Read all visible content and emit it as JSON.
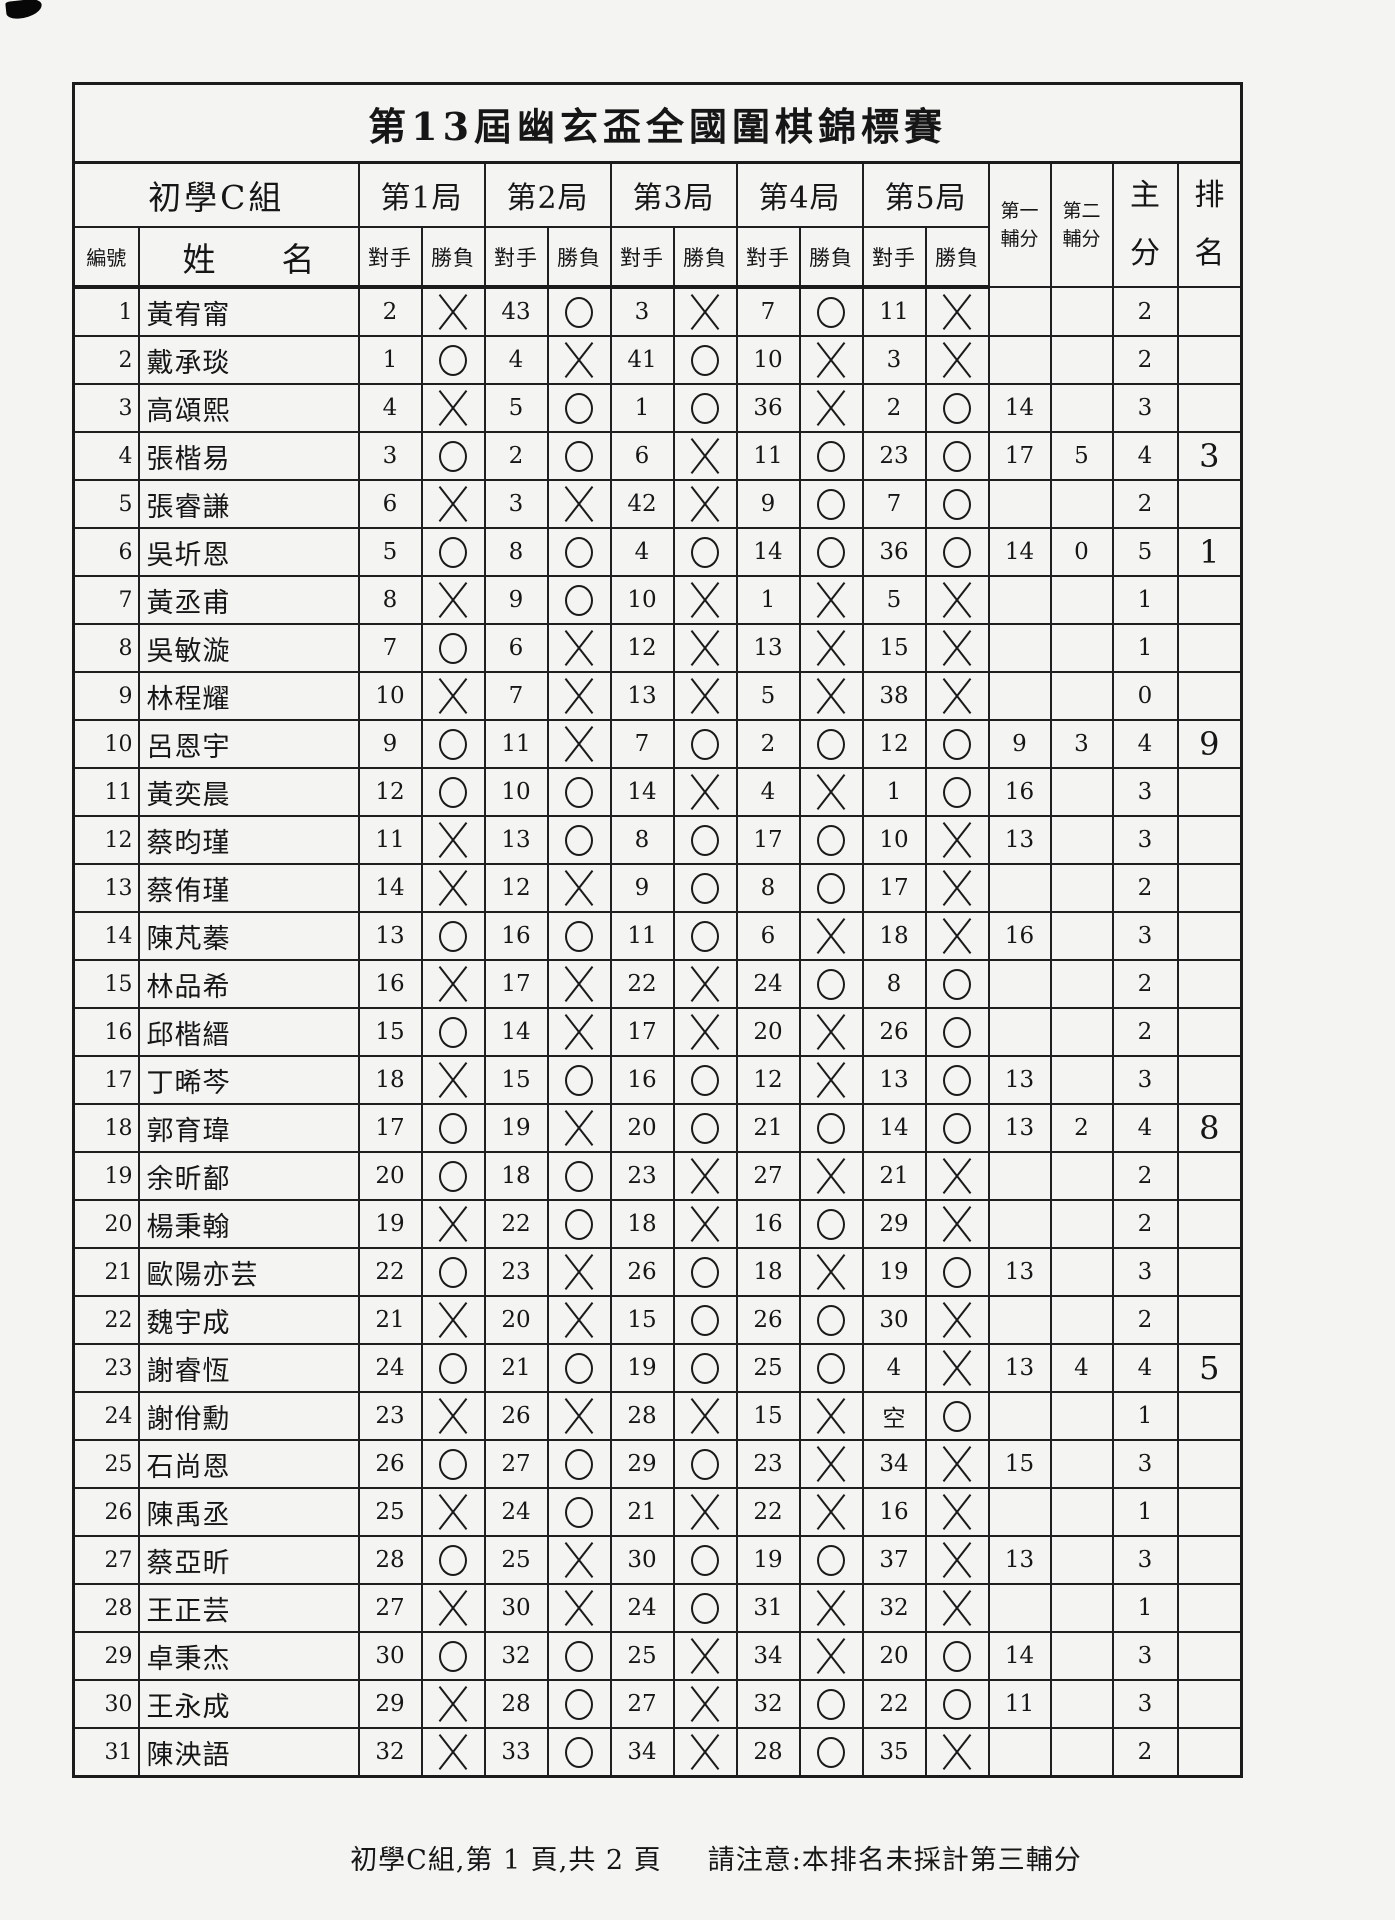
{
  "page": {
    "title": "第13屆幽玄盃全國圍棋錦標賽"
  },
  "table": {
    "headers": {
      "group_label": "初學C組",
      "round_labels": [
        "第1局",
        "第2局",
        "第3局",
        "第4局",
        "第5局"
      ],
      "id_label": "編號",
      "name_label": "姓　　名",
      "opponent_label": "對手",
      "result_label": "勝負",
      "tiebreak1_label": "第一\n輔分",
      "tiebreak2_label": "第二\n輔分",
      "score_label": "主\n分",
      "rank_label": "排\n名"
    },
    "rows": [
      {
        "no": "1",
        "name": "黃宥甯",
        "games": [
          [
            "2",
            "X"
          ],
          [
            "43",
            "O"
          ],
          [
            "3",
            "X"
          ],
          [
            "7",
            "O"
          ],
          [
            "11",
            "X"
          ]
        ],
        "tb1": "",
        "tb2": "",
        "score": "2",
        "rank": ""
      },
      {
        "no": "2",
        "name": "戴承琰",
        "games": [
          [
            "1",
            "O"
          ],
          [
            "4",
            "X"
          ],
          [
            "41",
            "O"
          ],
          [
            "10",
            "X"
          ],
          [
            "3",
            "X"
          ]
        ],
        "tb1": "",
        "tb2": "",
        "score": "2",
        "rank": ""
      },
      {
        "no": "3",
        "name": "高頌熙",
        "games": [
          [
            "4",
            "X"
          ],
          [
            "5",
            "O"
          ],
          [
            "1",
            "O"
          ],
          [
            "36",
            "X"
          ],
          [
            "2",
            "O"
          ]
        ],
        "tb1": "14",
        "tb2": "",
        "score": "3",
        "rank": ""
      },
      {
        "no": "4",
        "name": "張楷易",
        "games": [
          [
            "3",
            "O"
          ],
          [
            "2",
            "O"
          ],
          [
            "6",
            "X"
          ],
          [
            "11",
            "O"
          ],
          [
            "23",
            "O"
          ]
        ],
        "tb1": "17",
        "tb2": "5",
        "score": "4",
        "rank": "3"
      },
      {
        "no": "5",
        "name": "張睿謙",
        "games": [
          [
            "6",
            "X"
          ],
          [
            "3",
            "X"
          ],
          [
            "42",
            "X"
          ],
          [
            "9",
            "O"
          ],
          [
            "7",
            "O"
          ]
        ],
        "tb1": "",
        "tb2": "",
        "score": "2",
        "rank": ""
      },
      {
        "no": "6",
        "name": "吳圻恩",
        "games": [
          [
            "5",
            "O"
          ],
          [
            "8",
            "O"
          ],
          [
            "4",
            "O"
          ],
          [
            "14",
            "O"
          ],
          [
            "36",
            "O"
          ]
        ],
        "tb1": "14",
        "tb2": "0",
        "score": "5",
        "rank": "1"
      },
      {
        "no": "7",
        "name": "黃丞甫",
        "games": [
          [
            "8",
            "X"
          ],
          [
            "9",
            "O"
          ],
          [
            "10",
            "X"
          ],
          [
            "1",
            "X"
          ],
          [
            "5",
            "X"
          ]
        ],
        "tb1": "",
        "tb2": "",
        "score": "1",
        "rank": ""
      },
      {
        "no": "8",
        "name": "吳敏漩",
        "games": [
          [
            "7",
            "O"
          ],
          [
            "6",
            "X"
          ],
          [
            "12",
            "X"
          ],
          [
            "13",
            "X"
          ],
          [
            "15",
            "X"
          ]
        ],
        "tb1": "",
        "tb2": "",
        "score": "1",
        "rank": ""
      },
      {
        "no": "9",
        "name": "林程耀",
        "games": [
          [
            "10",
            "X"
          ],
          [
            "7",
            "X"
          ],
          [
            "13",
            "X"
          ],
          [
            "5",
            "X"
          ],
          [
            "38",
            "X"
          ]
        ],
        "tb1": "",
        "tb2": "",
        "score": "0",
        "rank": ""
      },
      {
        "no": "10",
        "name": "呂恩宇",
        "games": [
          [
            "9",
            "O"
          ],
          [
            "11",
            "X"
          ],
          [
            "7",
            "O"
          ],
          [
            "2",
            "O"
          ],
          [
            "12",
            "O"
          ]
        ],
        "tb1": "9",
        "tb2": "3",
        "score": "4",
        "rank": "9"
      },
      {
        "no": "11",
        "name": "黃奕晨",
        "games": [
          [
            "12",
            "O"
          ],
          [
            "10",
            "O"
          ],
          [
            "14",
            "X"
          ],
          [
            "4",
            "X"
          ],
          [
            "1",
            "O"
          ]
        ],
        "tb1": "16",
        "tb2": "",
        "score": "3",
        "rank": ""
      },
      {
        "no": "12",
        "name": "蔡昀瑾",
        "games": [
          [
            "11",
            "X"
          ],
          [
            "13",
            "O"
          ],
          [
            "8",
            "O"
          ],
          [
            "17",
            "O"
          ],
          [
            "10",
            "X"
          ]
        ],
        "tb1": "13",
        "tb2": "",
        "score": "3",
        "rank": ""
      },
      {
        "no": "13",
        "name": "蔡侑瑾",
        "games": [
          [
            "14",
            "X"
          ],
          [
            "12",
            "X"
          ],
          [
            "9",
            "O"
          ],
          [
            "8",
            "O"
          ],
          [
            "17",
            "X"
          ]
        ],
        "tb1": "",
        "tb2": "",
        "score": "2",
        "rank": ""
      },
      {
        "no": "14",
        "name": "陳芃蓁",
        "games": [
          [
            "13",
            "O"
          ],
          [
            "16",
            "O"
          ],
          [
            "11",
            "O"
          ],
          [
            "6",
            "X"
          ],
          [
            "18",
            "X"
          ]
        ],
        "tb1": "16",
        "tb2": "",
        "score": "3",
        "rank": ""
      },
      {
        "no": "15",
        "name": "林品希",
        "games": [
          [
            "16",
            "X"
          ],
          [
            "17",
            "X"
          ],
          [
            "22",
            "X"
          ],
          [
            "24",
            "O"
          ],
          [
            "8",
            "O"
          ]
        ],
        "tb1": "",
        "tb2": "",
        "score": "2",
        "rank": ""
      },
      {
        "no": "16",
        "name": "邱楷縉",
        "games": [
          [
            "15",
            "O"
          ],
          [
            "14",
            "X"
          ],
          [
            "17",
            "X"
          ],
          [
            "20",
            "X"
          ],
          [
            "26",
            "O"
          ]
        ],
        "tb1": "",
        "tb2": "",
        "score": "2",
        "rank": ""
      },
      {
        "no": "17",
        "name": "丁晞芩",
        "games": [
          [
            "18",
            "X"
          ],
          [
            "15",
            "O"
          ],
          [
            "16",
            "O"
          ],
          [
            "12",
            "X"
          ],
          [
            "13",
            "O"
          ]
        ],
        "tb1": "13",
        "tb2": "",
        "score": "3",
        "rank": ""
      },
      {
        "no": "18",
        "name": "郭育瑋",
        "games": [
          [
            "17",
            "O"
          ],
          [
            "19",
            "X"
          ],
          [
            "20",
            "O"
          ],
          [
            "21",
            "O"
          ],
          [
            "14",
            "O"
          ]
        ],
        "tb1": "13",
        "tb2": "2",
        "score": "4",
        "rank": "8"
      },
      {
        "no": "19",
        "name": "余昕鄐",
        "games": [
          [
            "20",
            "O"
          ],
          [
            "18",
            "O"
          ],
          [
            "23",
            "X"
          ],
          [
            "27",
            "X"
          ],
          [
            "21",
            "X"
          ]
        ],
        "tb1": "",
        "tb2": "",
        "score": "2",
        "rank": ""
      },
      {
        "no": "20",
        "name": "楊秉翰",
        "games": [
          [
            "19",
            "X"
          ],
          [
            "22",
            "O"
          ],
          [
            "18",
            "X"
          ],
          [
            "16",
            "O"
          ],
          [
            "29",
            "X"
          ]
        ],
        "tb1": "",
        "tb2": "",
        "score": "2",
        "rank": ""
      },
      {
        "no": "21",
        "name": "歐陽亦芸",
        "games": [
          [
            "22",
            "O"
          ],
          [
            "23",
            "X"
          ],
          [
            "26",
            "O"
          ],
          [
            "18",
            "X"
          ],
          [
            "19",
            "O"
          ]
        ],
        "tb1": "13",
        "tb2": "",
        "score": "3",
        "rank": ""
      },
      {
        "no": "22",
        "name": "魏宇成",
        "games": [
          [
            "21",
            "X"
          ],
          [
            "20",
            "X"
          ],
          [
            "15",
            "O"
          ],
          [
            "26",
            "O"
          ],
          [
            "30",
            "X"
          ]
        ],
        "tb1": "",
        "tb2": "",
        "score": "2",
        "rank": ""
      },
      {
        "no": "23",
        "name": "謝睿恆",
        "games": [
          [
            "24",
            "O"
          ],
          [
            "21",
            "O"
          ],
          [
            "19",
            "O"
          ],
          [
            "25",
            "O"
          ],
          [
            "4",
            "X"
          ]
        ],
        "tb1": "13",
        "tb2": "4",
        "score": "4",
        "rank": "5"
      },
      {
        "no": "24",
        "name": "謝佾勳",
        "games": [
          [
            "23",
            "X"
          ],
          [
            "26",
            "X"
          ],
          [
            "28",
            "X"
          ],
          [
            "15",
            "X"
          ],
          [
            "空",
            "O"
          ]
        ],
        "tb1": "",
        "tb2": "",
        "score": "1",
        "rank": ""
      },
      {
        "no": "25",
        "name": "石尚恩",
        "games": [
          [
            "26",
            "O"
          ],
          [
            "27",
            "O"
          ],
          [
            "29",
            "O"
          ],
          [
            "23",
            "X"
          ],
          [
            "34",
            "X"
          ]
        ],
        "tb1": "15",
        "tb2": "",
        "score": "3",
        "rank": ""
      },
      {
        "no": "26",
        "name": "陳禹丞",
        "games": [
          [
            "25",
            "X"
          ],
          [
            "24",
            "O"
          ],
          [
            "21",
            "X"
          ],
          [
            "22",
            "X"
          ],
          [
            "16",
            "X"
          ]
        ],
        "tb1": "",
        "tb2": "",
        "score": "1",
        "rank": ""
      },
      {
        "no": "27",
        "name": "蔡亞昕",
        "games": [
          [
            "28",
            "O"
          ],
          [
            "25",
            "X"
          ],
          [
            "30",
            "O"
          ],
          [
            "19",
            "O"
          ],
          [
            "37",
            "X"
          ]
        ],
        "tb1": "13",
        "tb2": "",
        "score": "3",
        "rank": ""
      },
      {
        "no": "28",
        "name": "王正芸",
        "games": [
          [
            "27",
            "X"
          ],
          [
            "30",
            "X"
          ],
          [
            "24",
            "O"
          ],
          [
            "31",
            "X"
          ],
          [
            "32",
            "X"
          ]
        ],
        "tb1": "",
        "tb2": "",
        "score": "1",
        "rank": ""
      },
      {
        "no": "29",
        "name": "卓秉杰",
        "games": [
          [
            "30",
            "O"
          ],
          [
            "32",
            "O"
          ],
          [
            "25",
            "X"
          ],
          [
            "34",
            "X"
          ],
          [
            "20",
            "O"
          ]
        ],
        "tb1": "14",
        "tb2": "",
        "score": "3",
        "rank": ""
      },
      {
        "no": "30",
        "name": "王永成",
        "games": [
          [
            "29",
            "X"
          ],
          [
            "28",
            "O"
          ],
          [
            "27",
            "X"
          ],
          [
            "32",
            "O"
          ],
          [
            "22",
            "O"
          ]
        ],
        "tb1": "11",
        "tb2": "",
        "score": "3",
        "rank": ""
      },
      {
        "no": "31",
        "name": "陳泱語",
        "games": [
          [
            "32",
            "X"
          ],
          [
            "33",
            "O"
          ],
          [
            "34",
            "X"
          ],
          [
            "28",
            "O"
          ],
          [
            "35",
            "X"
          ]
        ],
        "tb1": "",
        "tb2": "",
        "score": "2",
        "rank": ""
      }
    ]
  },
  "footer": {
    "page_info": "初學C組,第 1 頁,共 2 頁",
    "note": "請注意:本排名未採計第三輔分"
  }
}
